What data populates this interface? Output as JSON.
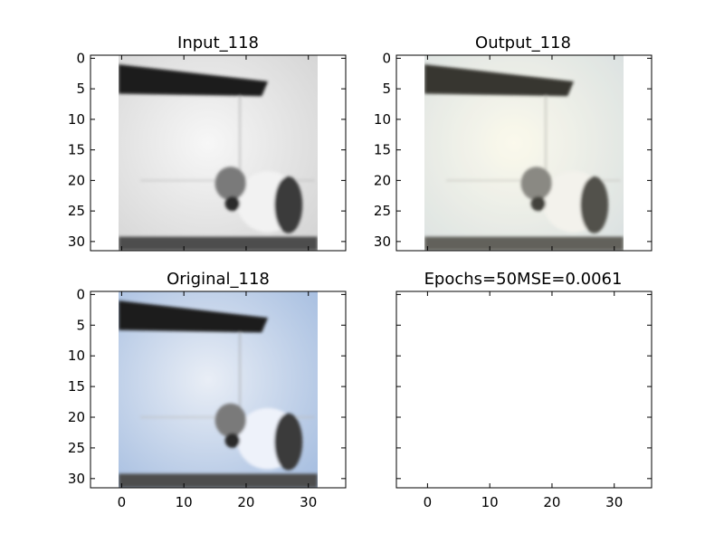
{
  "figure": {
    "colors": {
      "background": "#ffffff",
      "image_bg_gray": "#e6e6e6",
      "image_bg_blue": "#c7d6ea",
      "roof": "#1f1f1f",
      "floor": "#4d4d4d",
      "cat_dark": "#3b3b3b"
    }
  },
  "chart_data": [
    {
      "type": "image",
      "title": "Input_118",
      "xlim": [
        -5,
        36
      ],
      "ylim": [
        31.5,
        -0.5
      ],
      "xticks": [],
      "yticks": [
        0,
        5,
        10,
        15,
        20,
        25,
        30
      ],
      "image_extent": [
        -0.5,
        31.5,
        31.5,
        -0.5
      ],
      "image_style": "grayscale"
    },
    {
      "type": "image",
      "title": "Output_118",
      "xlim": [
        -5,
        36
      ],
      "ylim": [
        31.5,
        -0.5
      ],
      "xticks": [],
      "yticks": [
        0,
        5,
        10,
        15,
        20,
        25,
        30
      ],
      "image_extent": [
        -0.5,
        31.5,
        31.5,
        -0.5
      ],
      "image_style": "warm"
    },
    {
      "type": "image",
      "title": "Original_118",
      "xlim": [
        -5,
        36
      ],
      "ylim": [
        31.5,
        -0.5
      ],
      "xticks": [
        0,
        10,
        20,
        30
      ],
      "yticks": [
        0,
        5,
        10,
        15,
        20,
        25,
        30
      ],
      "image_extent": [
        -0.5,
        31.5,
        31.5,
        -0.5
      ],
      "image_style": "blue"
    },
    {
      "type": "image",
      "title": "Epochs=50MSE=0.0061",
      "xlim": [
        -5,
        36
      ],
      "ylim": [
        31.5,
        -0.5
      ],
      "xticks": [
        0,
        10,
        20,
        30
      ],
      "yticks": [],
      "image_extent": null,
      "image_style": "empty"
    }
  ]
}
